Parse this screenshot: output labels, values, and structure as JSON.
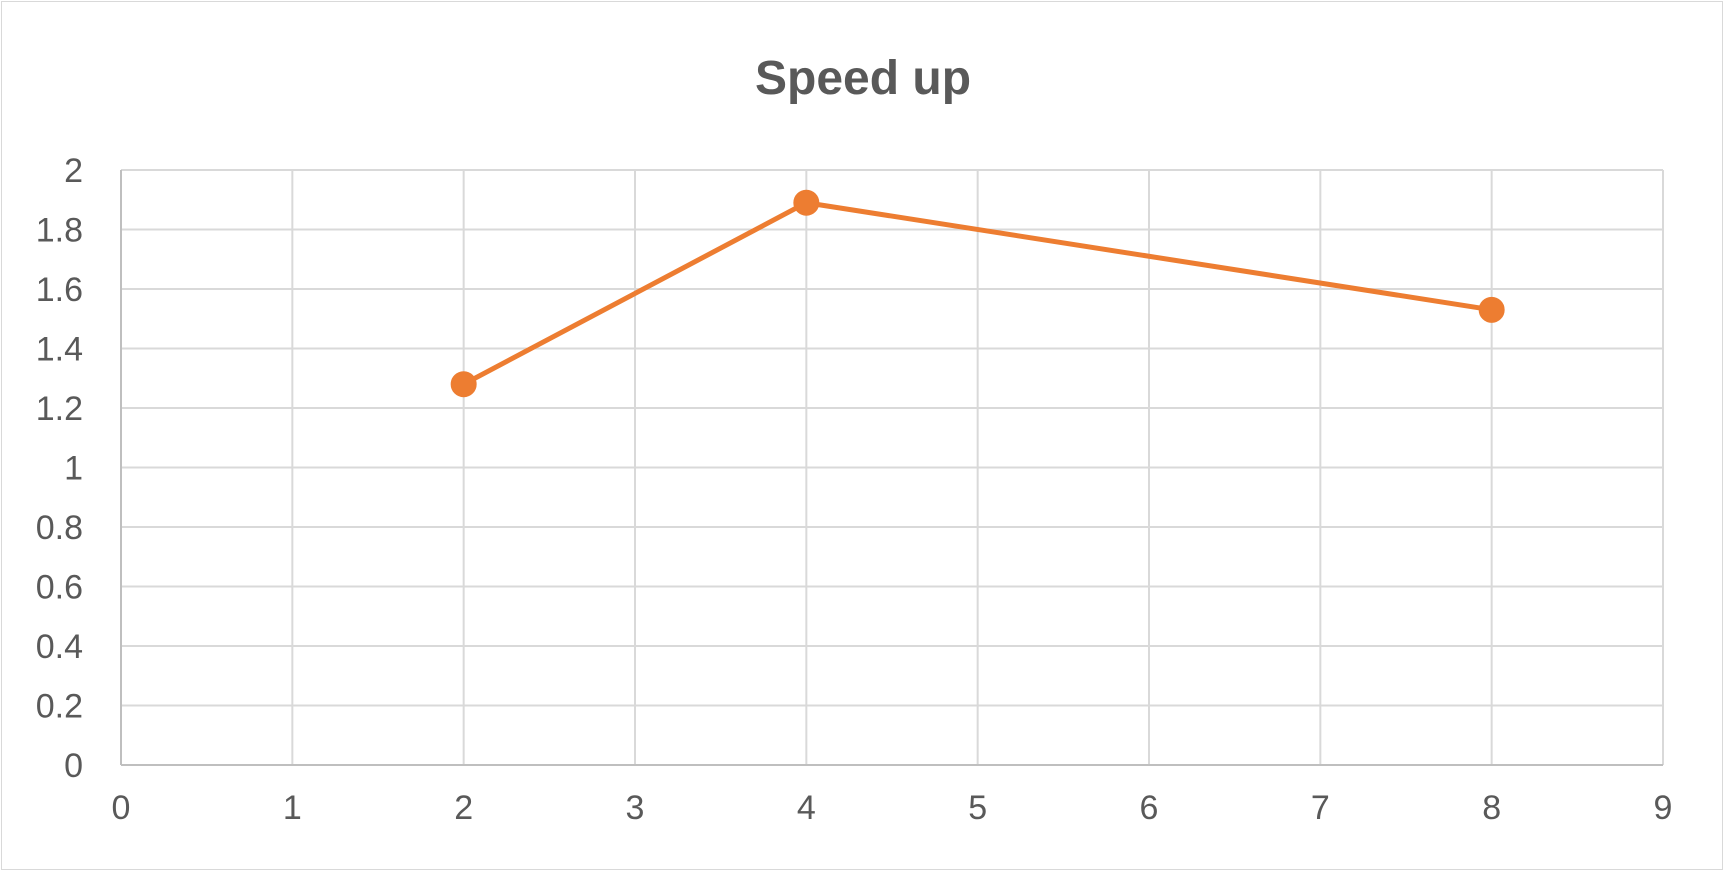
{
  "chart_data": {
    "type": "scatter",
    "title": "Speed up",
    "xlabel": "",
    "ylabel": "",
    "xlim": [
      0,
      9
    ],
    "ylim": [
      0,
      2
    ],
    "x_ticks": [
      "0",
      "1",
      "2",
      "3",
      "4",
      "5",
      "6",
      "7",
      "8",
      "9"
    ],
    "y_ticks": [
      "0",
      "0.2",
      "0.4",
      "0.6",
      "0.8",
      "1",
      "1.2",
      "1.4",
      "1.6",
      "1.8",
      "2"
    ],
    "grid": true,
    "legend": "none",
    "series": [
      {
        "color": "#ed7d31",
        "lines": true,
        "markers": true,
        "points": [
          {
            "x": 2,
            "y": 1.28
          },
          {
            "x": 4,
            "y": 1.89
          },
          {
            "x": 8,
            "y": 1.53
          }
        ]
      }
    ]
  }
}
